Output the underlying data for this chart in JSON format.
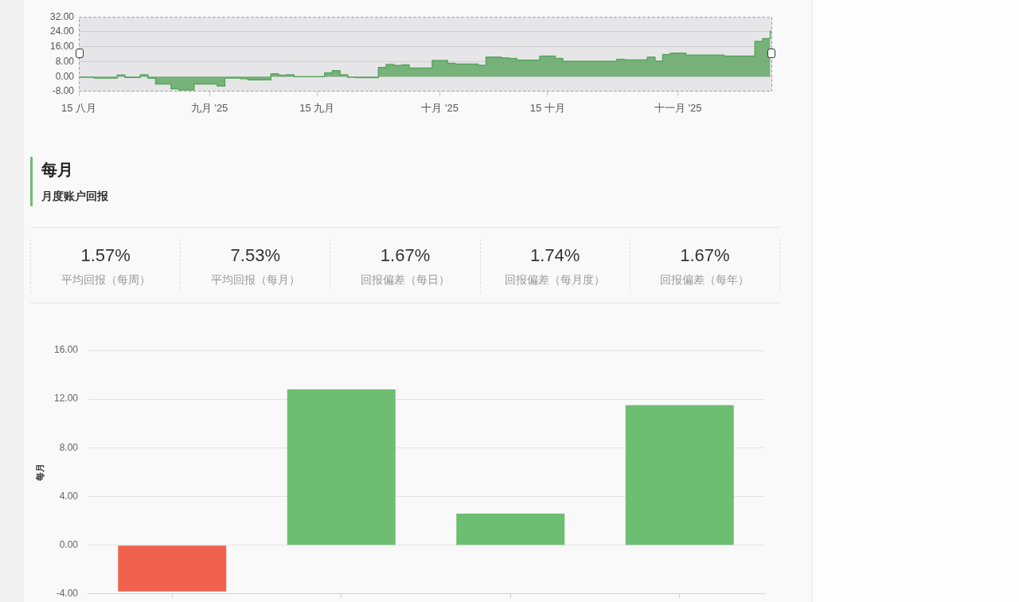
{
  "chart_data": [
    {
      "type": "area",
      "x": [
        "2025-08-15",
        "2025-08-17",
        "2025-08-20",
        "2025-08-21",
        "2025-08-23",
        "2025-08-24",
        "2025-08-25",
        "2025-08-27",
        "2025-08-28",
        "2025-08-30",
        "2025-09-02",
        "2025-09-03",
        "2025-09-05",
        "2025-09-06",
        "2025-09-09",
        "2025-09-10",
        "2025-09-11",
        "2025-09-12",
        "2025-09-16",
        "2025-09-17",
        "2025-09-18",
        "2025-09-19",
        "2025-09-20",
        "2025-09-23",
        "2025-09-24",
        "2025-09-25",
        "2025-09-26",
        "2025-09-27",
        "2025-09-30",
        "2025-10-02",
        "2025-10-03",
        "2025-10-06",
        "2025-10-07",
        "2025-10-09",
        "2025-10-10",
        "2025-10-11",
        "2025-10-14",
        "2025-10-16",
        "2025-10-17",
        "2025-10-24",
        "2025-10-25",
        "2025-10-28",
        "2025-10-29",
        "2025-10-30",
        "2025-10-31",
        "2025-11-02",
        "2025-11-07",
        "2025-11-11",
        "2025-11-12",
        "2025-11-13"
      ],
      "series": [
        {
          "type": "step",
          "color": "#5aa55e",
          "values": [
            -0.3,
            -0.7,
            0.8,
            -0.4,
            1.0,
            -0.9,
            -3.9,
            -6.5,
            -7.2,
            -4.0,
            -5.0,
            -0.7,
            -1.1,
            -1.7,
            1.5,
            0.7,
            1.0,
            0.0,
            2.0,
            3.2,
            1.0,
            -0.3,
            -0.5,
            4.9,
            6.5,
            6.0,
            6.3,
            4.6,
            8.6,
            7.1,
            6.7,
            6.1,
            10.4,
            10.0,
            9.7,
            8.8,
            11.0,
            9.7,
            8.2,
            9.3,
            9.0,
            10.4,
            8.3,
            11.8,
            12.6,
            11.5,
            11.0,
            18.9,
            20.4,
            24.7
          ]
        }
      ],
      "xlim": [
        "2025-08-15",
        "2025-11-13T06:00"
      ],
      "xticks": [
        {
          "value": "2025-08-15",
          "label": "15 八月"
        },
        {
          "value": "2025-09-01",
          "label": "九月 '25"
        },
        {
          "value": "2025-09-15",
          "label": "15 九月"
        },
        {
          "value": "2025-10-01",
          "label": "十月 '25"
        },
        {
          "value": "2025-10-15",
          "label": "15 十月"
        },
        {
          "value": "2025-11-01",
          "label": "十一月 '25"
        }
      ],
      "ylim": [
        -8,
        32
      ],
      "yticks": [
        {
          "value": -8,
          "label": "-8.00"
        },
        {
          "value": 0,
          "label": "0.00"
        },
        {
          "value": 8,
          "label": "8.00"
        },
        {
          "value": 16,
          "label": "16.00"
        },
        {
          "value": 24,
          "label": "24.00"
        },
        {
          "value": 32,
          "label": "32.00"
        }
      ],
      "grid": "y"
    },
    {
      "type": "other",
      "title": "每月",
      "subtitle": "月度账户回报",
      "categories": [
        "平均回报（每周）",
        "平均回报（每月）",
        "回报偏差（每日）",
        "回报偏差（每月度）",
        "回报偏差（每年）"
      ],
      "value_labels": [
        "1.57%",
        "7.53%",
        "1.67%",
        "1.74%",
        "1.67%"
      ]
    },
    {
      "type": "bar",
      "ylabel": "每月",
      "categories": [
        null,
        null,
        null,
        null
      ],
      "values": [
        -3.8,
        12.8,
        2.6,
        11.5
      ],
      "colors": [
        "#f0624d",
        "#6dbe72",
        "#6dbe72",
        "#6dbe72"
      ],
      "ylim": [
        -4,
        16
      ],
      "yticks": [
        {
          "value": -4,
          "label": "-4.00"
        },
        {
          "value": 0,
          "label": "0.00"
        },
        {
          "value": 4,
          "label": "4.00"
        },
        {
          "value": 8,
          "label": "8.00"
        },
        {
          "value": 12,
          "label": "12.00"
        },
        {
          "value": 16,
          "label": "16.00"
        }
      ],
      "grid": "y"
    }
  ]
}
